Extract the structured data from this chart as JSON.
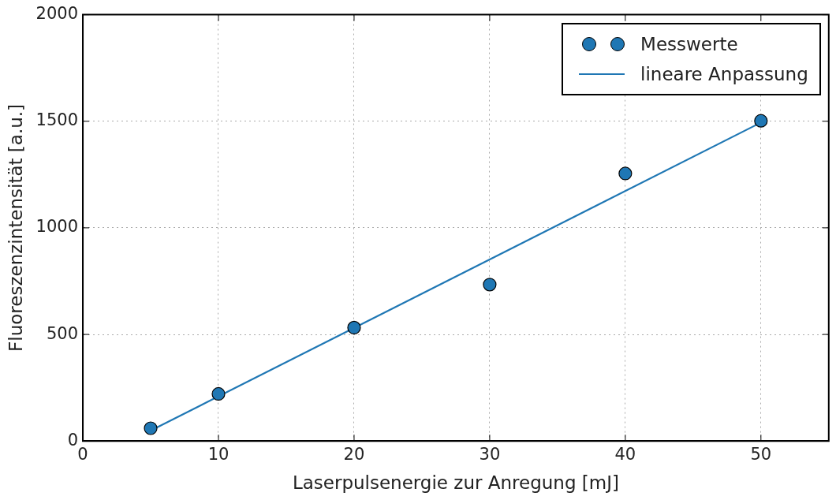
{
  "chart_data": {
    "type": "scatter",
    "xlabel": "Laserpulsenergie zur Anregung [mJ]",
    "ylabel": "Fluoreszenzintensität [a.u.]",
    "xlim": [
      0,
      55
    ],
    "xticks": [
      0,
      10,
      20,
      30,
      40,
      50
    ],
    "ylim": [
      0,
      2000
    ],
    "yticks": [
      0,
      500,
      1000,
      1500,
      2000
    ],
    "grid": true,
    "legend": "top right",
    "series": [
      {
        "name": "Messwerte",
        "marker": "circle",
        "color": "#1f77b4",
        "x": [
          5,
          10,
          20,
          30,
          40,
          50
        ],
        "values": [
          60,
          221,
          532,
          734,
          1255,
          1502
        ]
      },
      {
        "name": "lineare Anpassung",
        "type": "line",
        "color": "#1f77b4",
        "line_style": "solid",
        "x": [
          5,
          50
        ],
        "values": [
          49,
          1494
        ]
      }
    ]
  }
}
